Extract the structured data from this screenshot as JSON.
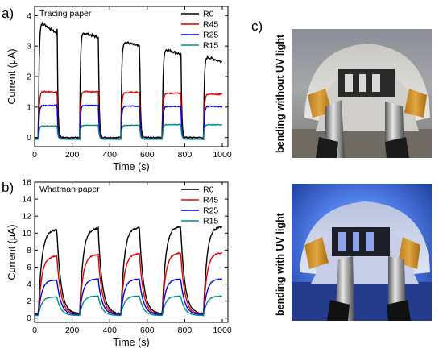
{
  "panels": {
    "a": "a)",
    "b": "b)",
    "c": "c)"
  },
  "chart_data": [
    {
      "type": "line",
      "title": "Tracing paper",
      "xlabel": "Time (s)",
      "ylabel": "Current (μA)",
      "xlim": [
        0,
        1030
      ],
      "ylim": [
        -0.3,
        4.3
      ],
      "xticks": [
        0,
        200,
        400,
        600,
        800,
        1000
      ],
      "yticks": [
        0,
        1,
        2,
        3,
        4
      ],
      "legend_position": "top-right",
      "on_time_s": 100,
      "off_time_s": 120,
      "series": [
        {
          "name": "R0",
          "color": "#000000",
          "peaks": [
            3.85,
            3.48,
            3.18,
            2.93,
            2.68
          ],
          "baseline": 0.0
        },
        {
          "name": "R45",
          "color": "#e00000",
          "peaks": [
            1.5,
            1.5,
            1.48,
            1.45,
            1.42
          ],
          "baseline": -0.05
        },
        {
          "name": "R25",
          "color": "#0000e0",
          "peaks": [
            1.05,
            1.05,
            1.03,
            1.02,
            1.02
          ],
          "baseline": -0.05
        },
        {
          "name": "R15",
          "color": "#008b8b",
          "peaks": [
            0.38,
            0.4,
            0.4,
            0.42,
            0.42
          ],
          "baseline": -0.05
        }
      ]
    },
    {
      "type": "line",
      "title": "Whatman paper",
      "xlabel": "Time (s)",
      "ylabel": "Current (μA)",
      "xlim": [
        0,
        1030
      ],
      "ylim": [
        -0.5,
        16
      ],
      "xticks": [
        0,
        200,
        400,
        600,
        800,
        1000
      ],
      "yticks": [
        0,
        2,
        4,
        6,
        8,
        10,
        12,
        14,
        16
      ],
      "legend_position": "top-right",
      "on_time_s": 100,
      "off_time_s": 120,
      "series": [
        {
          "name": "R0",
          "color": "#000000",
          "peaks": [
            10.4,
            10.6,
            10.7,
            10.8,
            10.8
          ],
          "baseline": 0.5
        },
        {
          "name": "R45",
          "color": "#e00000",
          "peaks": [
            7.3,
            7.5,
            7.6,
            7.7,
            7.7
          ],
          "baseline": 0.4
        },
        {
          "name": "R25",
          "color": "#0000e0",
          "peaks": [
            4.5,
            4.6,
            4.6,
            4.6,
            4.6
          ],
          "baseline": 0.4
        },
        {
          "name": "R15",
          "color": "#008b8b",
          "peaks": [
            2.5,
            2.6,
            2.6,
            2.6,
            2.6
          ],
          "baseline": 0.3
        }
      ]
    }
  ],
  "photos": {
    "top_label": "bending without UV light",
    "bottom_label": "bending with UV light"
  }
}
